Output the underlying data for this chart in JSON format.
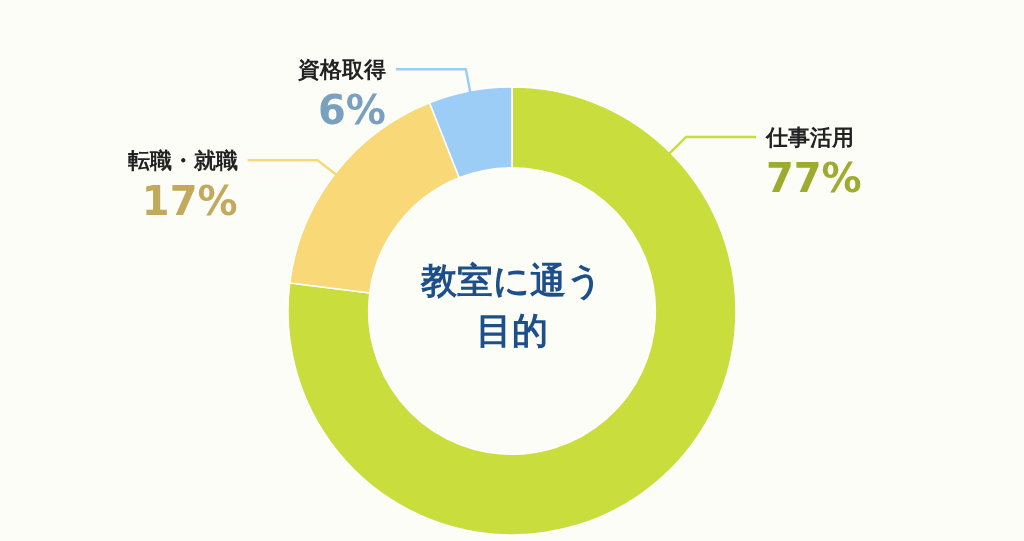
{
  "chart_data": {
    "type": "donut",
    "title": "教室に通う目的",
    "categories": [
      "仕事活用",
      "転職・就職",
      "資格取得"
    ],
    "values": [
      77,
      17,
      6
    ],
    "colors": [
      "#c9dd3c",
      "#f9d977",
      "#9ccdf6"
    ],
    "value_labels": [
      "77%",
      "17%",
      "6%"
    ]
  }
}
